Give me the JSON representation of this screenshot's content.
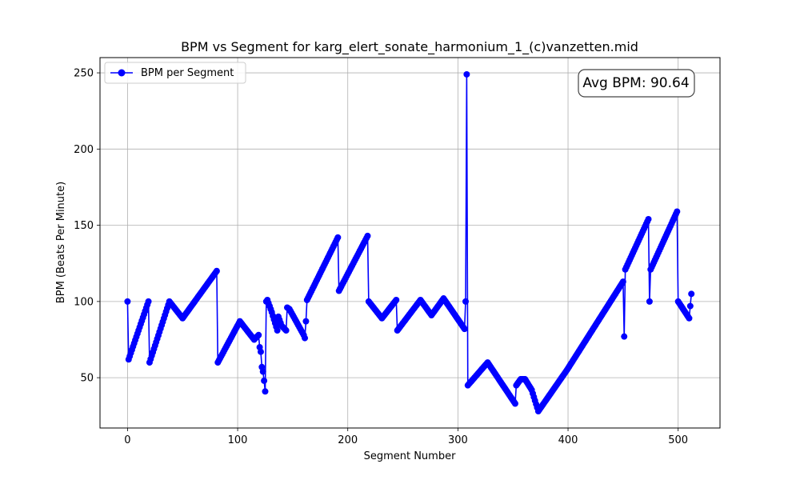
{
  "chart_data": {
    "type": "line",
    "title": "BPM vs Segment for karg_elert_sonate_harmonium_1_(c)vanzetten.mid",
    "xlabel": "Segment Number",
    "ylabel": "BPM (Beats Per Minute)",
    "xlim": [
      -25,
      538
    ],
    "ylim": [
      17,
      260
    ],
    "xticks": [
      0,
      100,
      200,
      300,
      400,
      500
    ],
    "yticks": [
      50,
      100,
      150,
      200,
      250
    ],
    "grid": true,
    "legend_position": "top-left",
    "series_color": "#0000ff",
    "annotation": "Avg BPM: 90.64",
    "series": [
      {
        "name": "BPM per Segment",
        "keypoints": [
          [
            0,
            100
          ],
          [
            1,
            62
          ],
          [
            19,
            100
          ],
          [
            20,
            60
          ],
          [
            38,
            100
          ],
          [
            50,
            89
          ],
          [
            81,
            120
          ],
          [
            82,
            60
          ],
          [
            102,
            87
          ],
          [
            115,
            75
          ],
          [
            119,
            78
          ],
          [
            120,
            70
          ],
          [
            121,
            67
          ],
          [
            122,
            57
          ],
          [
            123,
            54
          ],
          [
            124,
            48
          ],
          [
            125,
            41
          ],
          [
            126,
            100
          ],
          [
            127,
            101
          ],
          [
            131,
            93
          ],
          [
            136,
            81
          ],
          [
            137,
            90
          ],
          [
            140,
            84
          ],
          [
            144,
            81
          ],
          [
            145,
            96
          ],
          [
            147,
            95
          ],
          [
            160,
            78
          ],
          [
            161,
            76
          ],
          [
            162,
            87
          ],
          [
            163,
            101
          ],
          [
            191,
            142
          ],
          [
            192,
            107
          ],
          [
            218,
            143
          ],
          [
            219,
            100
          ],
          [
            231,
            89
          ],
          [
            244,
            101
          ],
          [
            245,
            81
          ],
          [
            266,
            101
          ],
          [
            276,
            91
          ],
          [
            287,
            102
          ],
          [
            306,
            82
          ],
          [
            307,
            100
          ],
          [
            308,
            249
          ],
          [
            309,
            45
          ],
          [
            327,
            60
          ],
          [
            352,
            33
          ],
          [
            353,
            45
          ],
          [
            357,
            49
          ],
          [
            361,
            49
          ],
          [
            367,
            42
          ],
          [
            373,
            28
          ],
          [
            399,
            55
          ],
          [
            450,
            113
          ],
          [
            451,
            77
          ],
          [
            452,
            121
          ],
          [
            473,
            154
          ],
          [
            474,
            100
          ],
          [
            475,
            121
          ],
          [
            499,
            159
          ],
          [
            500,
            100
          ],
          [
            510,
            89
          ],
          [
            512,
            105
          ]
        ]
      }
    ]
  }
}
